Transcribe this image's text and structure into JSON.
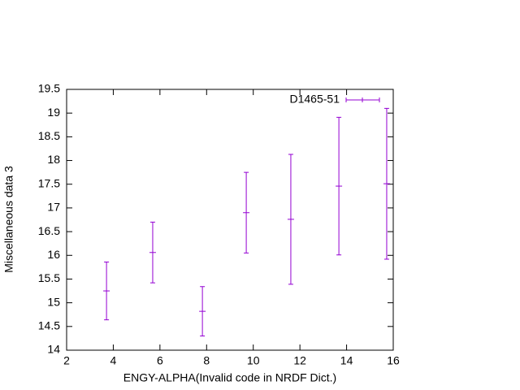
{
  "chart_data": {
    "type": "errorbar",
    "xlabel": "ENGY-ALPHA(Invalid code in NRDF Dict.)",
    "ylabel": "Miscellaneous data 3",
    "xlim": [
      2,
      16
    ],
    "xticks": [
      2,
      4,
      6,
      8,
      10,
      12,
      14,
      16
    ],
    "ylim": [
      14,
      19.5
    ],
    "yticks": [
      14,
      14.5,
      15,
      15.5,
      16,
      16.5,
      17,
      17.5,
      18,
      18.5,
      19,
      19.5
    ],
    "grid": false,
    "legend_position": "top-right",
    "series": [
      {
        "name": "D1465-51",
        "color": "#9400d3",
        "x": [
          3.71,
          5.69,
          7.82,
          9.7,
          11.61,
          13.67,
          15.72
        ],
        "values": [
          15.25,
          16.06,
          14.82,
          16.9,
          16.76,
          17.46,
          17.51
        ],
        "errors": [
          0.61,
          0.64,
          0.52,
          0.85,
          1.37,
          1.45,
          1.59
        ]
      }
    ]
  }
}
